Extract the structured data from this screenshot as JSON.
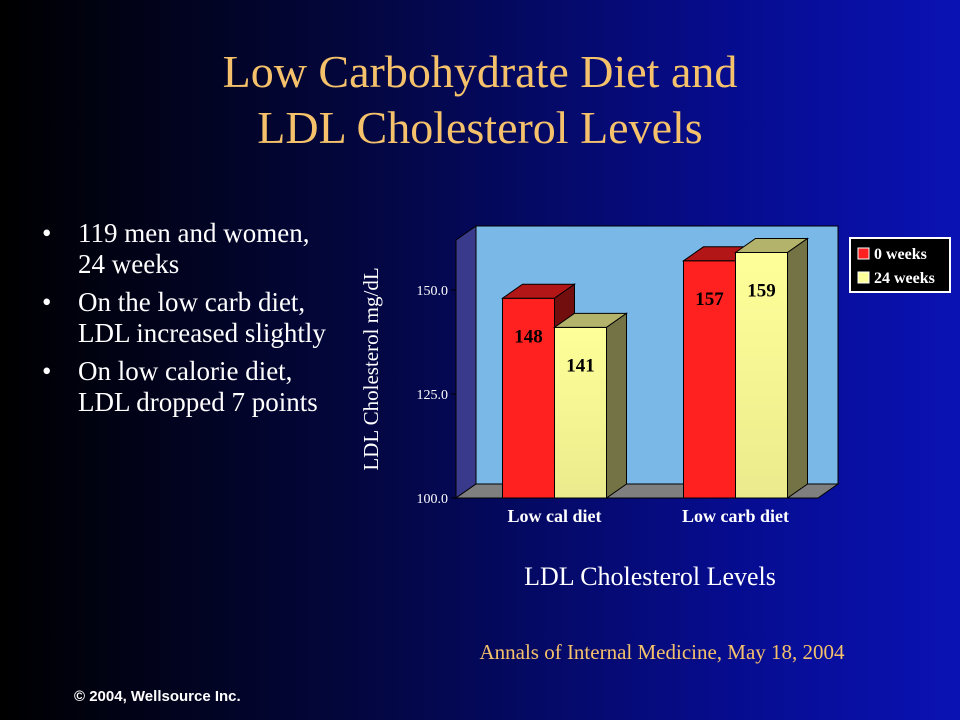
{
  "slide": {
    "title_line1": "Low Carbohydrate Diet and",
    "title_line2": "LDL Cholesterol Levels",
    "bullet_symbol": "•",
    "bullets": [
      "119 men and women, 24 weeks",
      "On the low carb diet, LDL increased slightly",
      "On low calorie diet, LDL dropped 7 points"
    ],
    "chart_caption": "LDL Cholesterol Levels",
    "source": "Annals of Internal Medicine, May 18, 2004",
    "copyright": "© 2004, Wellsource Inc."
  },
  "chart_data": {
    "type": "bar",
    "categories": [
      "Low cal diet",
      "Low carb diet"
    ],
    "series": [
      {
        "name": "0 weeks",
        "values": [
          148,
          157
        ],
        "color": "#ff2020"
      },
      {
        "name": "24 weeks",
        "values": [
          141,
          159
        ],
        "color": "#ffff99"
      }
    ],
    "data_labels": [
      [
        "148",
        "157"
      ],
      [
        "141",
        "159"
      ]
    ],
    "ylabel": "LDL Cholesterol mg/dL",
    "ylim": [
      100,
      162
    ],
    "yticks": [
      100,
      125,
      150
    ],
    "ytick_labels": [
      "100.0",
      "125.0",
      "150.0"
    ],
    "grid": false,
    "legend_position": "top-right",
    "style": "3d",
    "colors": {
      "plot_back": "#7ab8e8",
      "floor": "#7f7f7f",
      "side_wall": "#3a3a8c"
    }
  }
}
